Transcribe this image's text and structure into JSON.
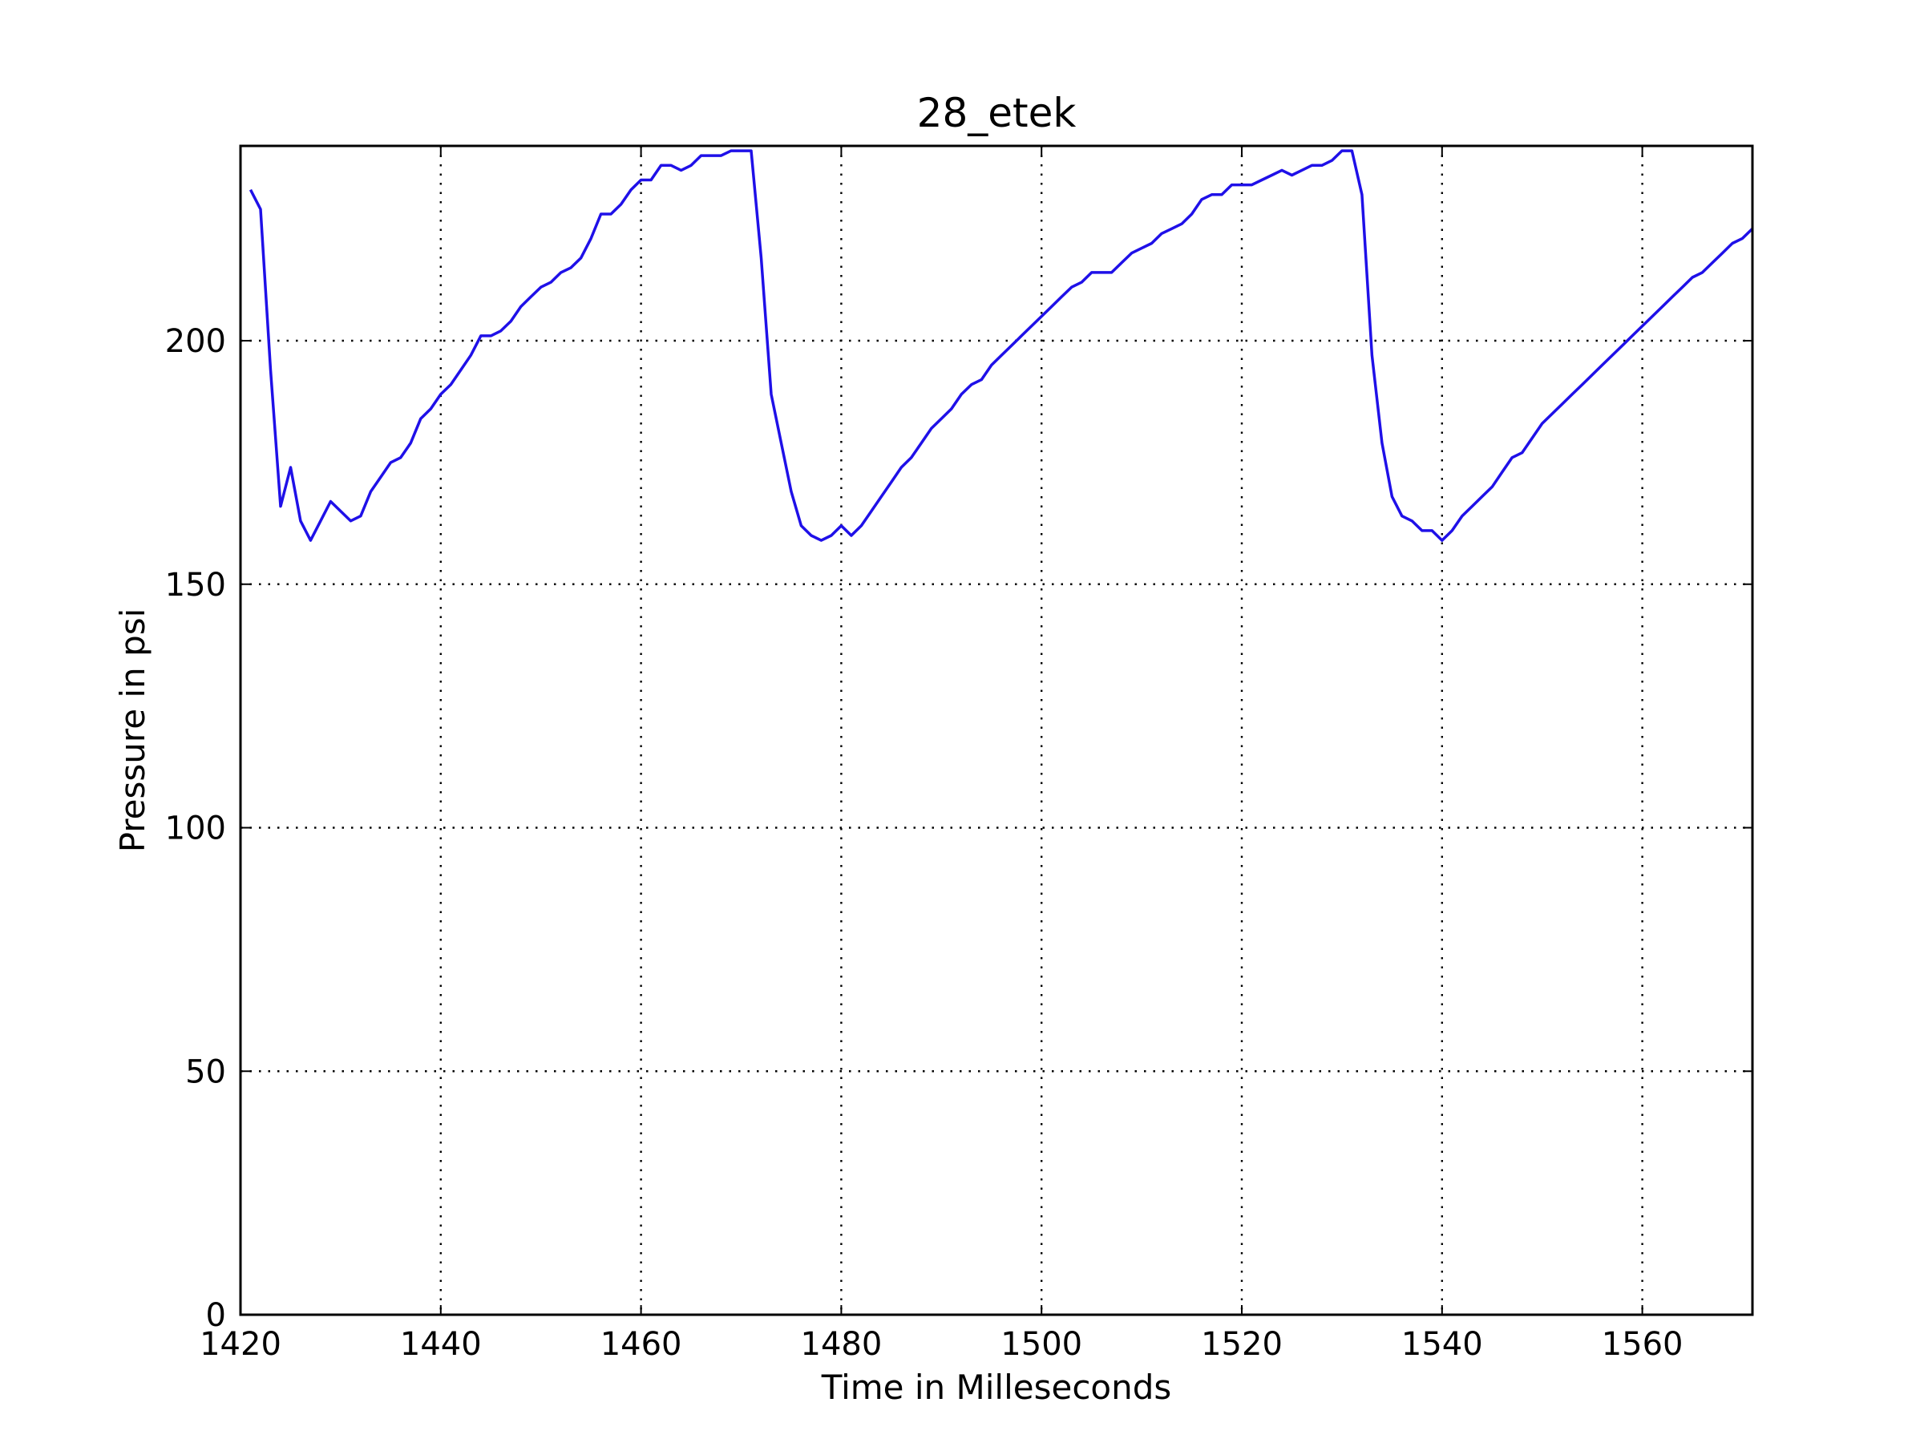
{
  "chart_data": {
    "type": "line",
    "title": "28_etek",
    "xlabel": "Time in Milleseconds",
    "ylabel": "Pressure in psi",
    "xlim": [
      1420,
      1571
    ],
    "ylim": [
      0,
      240
    ],
    "x_ticks": [
      "1420",
      "1440",
      "1460",
      "1480",
      "1500",
      "1520",
      "1540",
      "1560"
    ],
    "y_ticks": [
      "0",
      "50",
      "100",
      "150",
      "200"
    ],
    "grid": true,
    "legend": "none",
    "colors": {
      "series": "#1f10e8"
    },
    "series": [
      {
        "x": [
          1421,
          1422,
          1423,
          1424,
          1425,
          1426,
          1427,
          1428,
          1429,
          1430,
          1431,
          1432,
          1433,
          1434,
          1435,
          1436,
          1437,
          1438,
          1439,
          1440,
          1441,
          1442,
          1443,
          1444,
          1445,
          1446,
          1447,
          1448,
          1449,
          1450,
          1451,
          1452,
          1453,
          1454,
          1455,
          1456,
          1457,
          1458,
          1459,
          1460,
          1461,
          1462,
          1463,
          1464,
          1465,
          1466,
          1467,
          1468,
          1469,
          1470,
          1471,
          1472,
          1473,
          1474,
          1475,
          1476,
          1477,
          1478,
          1479,
          1480,
          1481,
          1482,
          1483,
          1484,
          1485,
          1486,
          1487,
          1488,
          1489,
          1490,
          1491,
          1492,
          1493,
          1494,
          1495,
          1496,
          1497,
          1498,
          1499,
          1500,
          1501,
          1502,
          1503,
          1504,
          1505,
          1506,
          1507,
          1508,
          1509,
          1510,
          1511,
          1512,
          1513,
          1514,
          1515,
          1516,
          1517,
          1518,
          1519,
          1520,
          1521,
          1522,
          1523,
          1524,
          1525,
          1526,
          1527,
          1528,
          1529,
          1530,
          1531,
          1532,
          1533,
          1534,
          1535,
          1536,
          1537,
          1538,
          1539,
          1540,
          1541,
          1542,
          1543,
          1544,
          1545,
          1546,
          1547,
          1548,
          1549,
          1550,
          1551,
          1552,
          1553,
          1554,
          1555,
          1556,
          1557,
          1558,
          1559,
          1560,
          1561,
          1562,
          1563,
          1564,
          1565,
          1566,
          1567,
          1568,
          1569,
          1570,
          1571
        ],
        "y": [
          231,
          227,
          194,
          166,
          174,
          163,
          159,
          163,
          167,
          165,
          163,
          164,
          169,
          172,
          175,
          176,
          179,
          184,
          186,
          189,
          191,
          194,
          197,
          201,
          201,
          202,
          204,
          207,
          209,
          211,
          212,
          214,
          215,
          217,
          221,
          226,
          226,
          228,
          231,
          233,
          233,
          236,
          236,
          235,
          236,
          238,
          238,
          238,
          239,
          239,
          239,
          217,
          189,
          179,
          169,
          162,
          160,
          159,
          160,
          162,
          160,
          162,
          165,
          168,
          171,
          174,
          176,
          179,
          182,
          184,
          186,
          189,
          191,
          192,
          195,
          197,
          199,
          201,
          203,
          205,
          207,
          209,
          211,
          212,
          214,
          214,
          214,
          216,
          218,
          219,
          220,
          222,
          223,
          224,
          226,
          229,
          230,
          230,
          232,
          232,
          232,
          233,
          234,
          235,
          234,
          235,
          236,
          236,
          237,
          239,
          239,
          230,
          197,
          179,
          168,
          164,
          163,
          161,
          161,
          159,
          161,
          164,
          166,
          168,
          170,
          173,
          176,
          177,
          180,
          183,
          185,
          187,
          189,
          191,
          193,
          195,
          197,
          199,
          201,
          203,
          205,
          207,
          209,
          211,
          213,
          214,
          216,
          218,
          220,
          221,
          223
        ]
      }
    ]
  }
}
